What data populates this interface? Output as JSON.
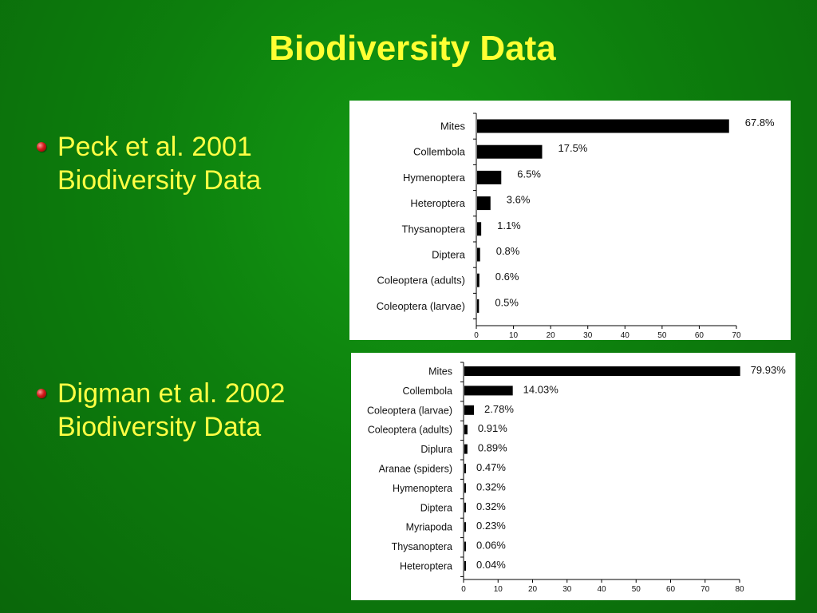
{
  "slide": {
    "title": "Biodiversity Data",
    "bullets": [
      {
        "line1": "Peck et al. 2001",
        "line2": "Biodiversity Data"
      },
      {
        "line1": "Digman et al. 2002",
        "line2": "Biodiversity Data"
      }
    ]
  },
  "chart_data": [
    {
      "type": "bar",
      "orientation": "horizontal",
      "categories": [
        "Mites",
        "Collembola",
        "Hymenoptera",
        "Heteroptera",
        "Thysanoptera",
        "Diptera",
        "Coleoptera (adults)",
        "Coleoptera (larvae)"
      ],
      "values": [
        67.8,
        17.5,
        6.5,
        3.6,
        1.1,
        0.8,
        0.6,
        0.5
      ],
      "data_labels": [
        "67.8%",
        "17.5%",
        "6.5%",
        "3.6%",
        "1.1%",
        "0.8%",
        "0.6%",
        "0.5%"
      ],
      "xlim": [
        0,
        70
      ],
      "xticks": [
        0,
        10,
        20,
        30,
        40,
        50,
        60,
        70
      ],
      "title": "",
      "xlabel": "",
      "ylabel": "",
      "grid": false,
      "bar_color": "#000000"
    },
    {
      "type": "bar",
      "orientation": "horizontal",
      "categories": [
        "Mites",
        "Collembola",
        "Coleoptera (larvae)",
        "Coleoptera (adults)",
        "Diplura",
        "Aranae (spiders)",
        "Hymenoptera",
        "Diptera",
        "Myriapoda",
        "Thysanoptera",
        "Heteroptera"
      ],
      "values": [
        79.93,
        14.03,
        2.78,
        0.91,
        0.89,
        0.47,
        0.32,
        0.32,
        0.23,
        0.06,
        0.04
      ],
      "data_labels": [
        "79.93%",
        "14.03%",
        "2.78%",
        "0.91%",
        "0.89%",
        "0.47%",
        "0.32%",
        "0.32%",
        "0.23%",
        "0.06%",
        "0.04%"
      ],
      "xlim": [
        0,
        80
      ],
      "xticks": [
        0,
        10,
        20,
        30,
        40,
        50,
        60,
        70,
        80
      ],
      "title": "",
      "xlabel": "",
      "ylabel": "",
      "grid": false,
      "bar_color": "#000000"
    }
  ]
}
